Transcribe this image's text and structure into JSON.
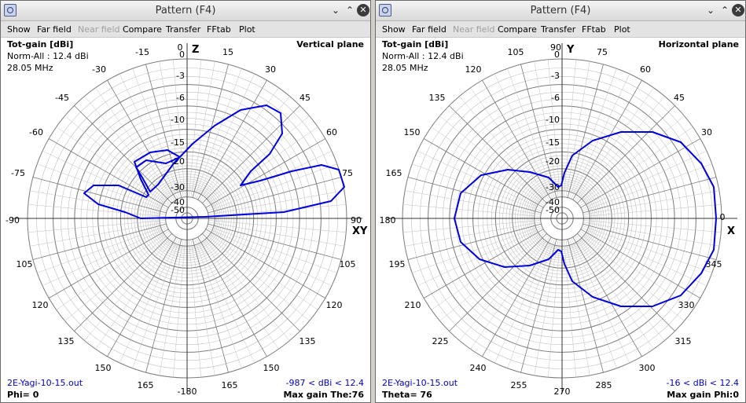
{
  "left": {
    "title": "Pattern   (F4)",
    "menu": [
      "Show",
      "Far field",
      "Near field",
      "Compare",
      "Transfer",
      "FFtab",
      "Plot"
    ],
    "gain_label": "Tot-gain [dBi]",
    "norm": "Norm-All : 12.4 dBi",
    "freq": "28.05 MHz",
    "plane": "Vertical plane",
    "file": "2E-Yagi-10-15.out",
    "angle_status": "Phi= 0",
    "range": "-987 < dBi < 12.4",
    "max_gain": "Max gain The:76",
    "axis_top": "Z",
    "axis_right": "XY",
    "angle_labels": [
      "0",
      "15",
      "30",
      "45",
      "60",
      "75",
      "90",
      "105",
      "120",
      "135",
      "150",
      "165",
      "-180",
      "165",
      "150",
      "135",
      "120",
      "105",
      "-90",
      "-75",
      "-60",
      "-45",
      "-30",
      "-15"
    ],
    "db_labels": [
      "0",
      "-3",
      "-6",
      "-10",
      "-15",
      "-20",
      "-30",
      "-40",
      "-50"
    ]
  },
  "right": {
    "title": "Pattern   (F4)",
    "menu": [
      "Show",
      "Far field",
      "Near field",
      "Compare",
      "Transfer",
      "FFtab",
      "Plot"
    ],
    "gain_label": "Tot-gain [dBi]",
    "norm": "Norm-All : 12.4 dBi",
    "freq": "28.05 MHz",
    "plane": "Horizontal plane",
    "file": "2E-Yagi-10-15.out",
    "angle_status": "Theta= 76",
    "range": "-16 < dBi < 12.4",
    "max_gain": "Max gain Phi:0",
    "axis_top": "Y",
    "axis_right": "X",
    "angle_labels": [
      "90",
      "75",
      "60",
      "45",
      "30",
      "0",
      "345",
      "330",
      "315",
      "300",
      "285",
      "270",
      "255",
      "240",
      "225",
      "210",
      "195",
      "180",
      "165",
      "150",
      "135",
      "120",
      "105"
    ],
    "db_labels": [
      "0",
      "-3",
      "-6",
      "-10",
      "-15",
      "-20",
      "-30",
      "-40",
      "-50"
    ]
  },
  "colors": {
    "trace": "#0000dd",
    "grid": "#7a7a7a",
    "grid_light": "#c0c0c0"
  }
}
